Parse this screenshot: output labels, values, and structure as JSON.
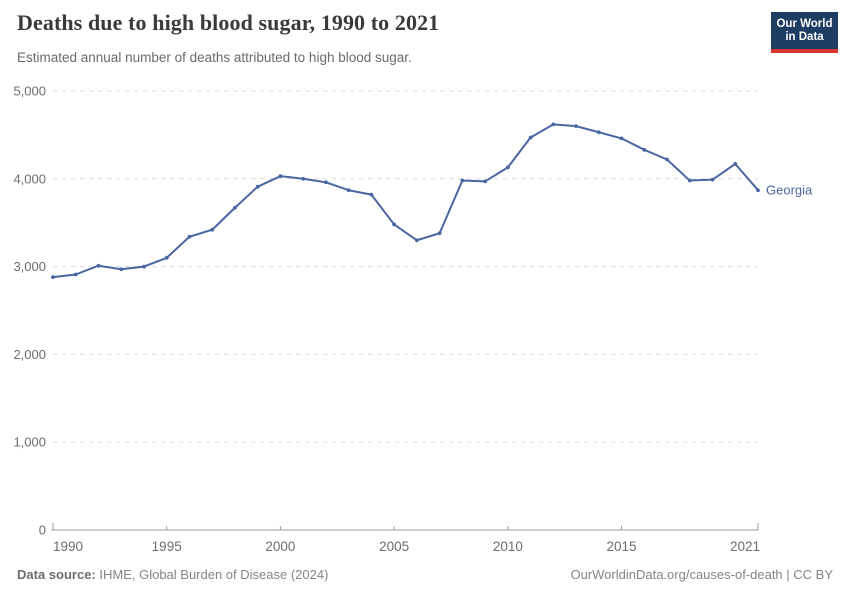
{
  "header": {
    "title": "Deaths due to high blood sugar, 1990 to 2021",
    "subtitle": "Estimated annual number of deaths attributed to high blood sugar.",
    "logo": {
      "line1": "Our World",
      "line2": "in Data"
    }
  },
  "chart_data": {
    "type": "line",
    "title": "Deaths due to high blood sugar, 1990 to 2021",
    "xlabel": "",
    "ylabel": "",
    "x": [
      1990,
      1991,
      1992,
      1993,
      1994,
      1995,
      1996,
      1997,
      1998,
      1999,
      2000,
      2001,
      2002,
      2003,
      2004,
      2005,
      2006,
      2007,
      2008,
      2009,
      2010,
      2011,
      2012,
      2013,
      2014,
      2015,
      2016,
      2017,
      2018,
      2019,
      2020,
      2021
    ],
    "series": [
      {
        "name": "Georgia",
        "color": "#4a66a0",
        "values": [
          2880,
          2910,
          3010,
          2970,
          3000,
          3100,
          3340,
          3420,
          3670,
          3910,
          4030,
          4000,
          3960,
          3870,
          3820,
          3480,
          3300,
          3380,
          3980,
          3970,
          4130,
          4470,
          4620,
          4600,
          4530,
          4460,
          4330,
          4220,
          3980,
          3990,
          4170,
          3870
        ]
      }
    ],
    "entity_label": "Georgia",
    "xlim": [
      1990,
      2021
    ],
    "ylim": [
      0,
      5000
    ],
    "x_ticks": [
      1990,
      1995,
      2000,
      2005,
      2010,
      2015,
      2021
    ],
    "y_ticks": [
      0,
      1000,
      2000,
      3000,
      4000,
      5000
    ],
    "grid": "horizontal-dashed",
    "legend_position": "line-end-label"
  },
  "footer": {
    "datasource_label": "Data source:",
    "datasource_value": " IHME, Global Burden of Disease (2024)",
    "link": "OurWorldinData.org/causes-of-death | CC BY"
  },
  "colors": {
    "line": "#4a66a0",
    "grid": "#dcdcdc",
    "axis": "#9e9e9e",
    "tick_label": "#6d6d6d",
    "logo_bg": "#1d3d63",
    "logo_accent": "#d8352e"
  }
}
